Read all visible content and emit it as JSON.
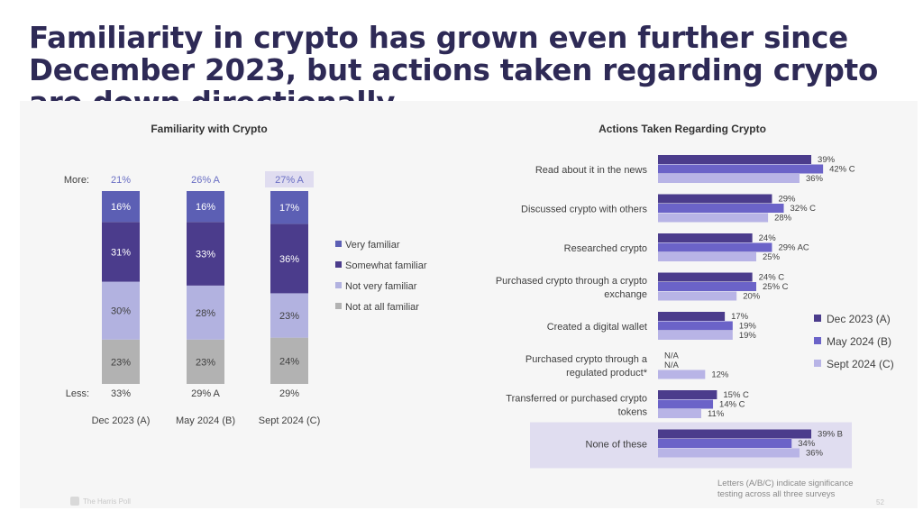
{
  "slide": {
    "title": "Familiarity in crypto has grown even further since December 2023, but actions taken regarding crypto are down directionally",
    "logo_text": "The Harris Poll",
    "footnote": "Letters (A/B/C) indicate significance testing across all three surveys",
    "page_number": "52"
  },
  "colors": {
    "very_familiar": "#5c5fb4",
    "somewhat_familiar": "#4b3c8c",
    "not_very_familiar": "#b2b2e0",
    "not_at_all_familiar": "#b2b2b2",
    "dec2023": "#4b3c8c",
    "may2024": "#6b63c8",
    "sept2024": "#b8b4e6",
    "more_label": "#6a6fc4",
    "highlight_box": "#e0ddf0",
    "text": "#404040"
  },
  "chart_data": [
    {
      "type": "bar",
      "subtype": "stacked",
      "title": "Familiarity with Crypto",
      "categories": [
        "Dec 2023 (A)",
        "May 2024 (B)",
        "Sept 2024  (C)"
      ],
      "series": [
        {
          "name": "Not at all familiar",
          "values": [
            23,
            23,
            24
          ],
          "labels": [
            "23%",
            "23%",
            "24%"
          ]
        },
        {
          "name": "Not very familiar",
          "values": [
            30,
            28,
            23
          ],
          "labels": [
            "30%",
            "28%",
            "23%"
          ]
        },
        {
          "name": "Somewhat familiar",
          "values": [
            31,
            33,
            36
          ],
          "labels": [
            "31%",
            "33%",
            "36%"
          ]
        },
        {
          "name": "Very familiar",
          "values": [
            16,
            16,
            17
          ],
          "labels": [
            "16%",
            "16%",
            "17%"
          ]
        }
      ],
      "legend_order": [
        "Very familiar",
        "Somewhat familiar",
        "Not very familiar",
        "Not at all familiar"
      ],
      "more_label": "More:",
      "more_values": [
        "21%",
        "26% A",
        "27% A"
      ],
      "more_highlight_index": 2,
      "less_label": "Less:",
      "less_values": [
        "33%",
        "29% A",
        "29%"
      ],
      "ylim": [
        0,
        100
      ],
      "legend": "right"
    },
    {
      "type": "bar",
      "subtype": "grouped-horizontal",
      "title": "Actions Taken Regarding Crypto",
      "categories": [
        "Read about it in the news",
        "Discussed crypto with others",
        "Researched crypto",
        "Purchased crypto through a crypto exchange",
        "Created a digital wallet",
        "Purchased crypto through a regulated product*",
        "Transferred or purchased crypto tokens",
        "None of these"
      ],
      "category_lines": [
        [
          "Read about it in the news"
        ],
        [
          "Discussed crypto with others"
        ],
        [
          "Researched crypto"
        ],
        [
          "Purchased crypto through a crypto",
          "exchange"
        ],
        [
          "Created a digital wallet"
        ],
        [
          "Purchased crypto through a",
          "regulated product*"
        ],
        [
          "Transferred or purchased crypto",
          "tokens"
        ],
        [
          "None of these"
        ]
      ],
      "series": [
        {
          "name": "Dec 2023 (A)",
          "values": [
            39,
            29,
            24,
            24,
            17,
            null,
            15,
            39
          ],
          "labels": [
            "39%",
            "29%",
            "24%",
            "24% C",
            "17%",
            "N/A",
            "15% C",
            "39% B"
          ]
        },
        {
          "name": "May 2024 (B)",
          "values": [
            42,
            32,
            29,
            25,
            19,
            null,
            14,
            34
          ],
          "labels": [
            "42% C",
            "32% C",
            "29% AC",
            "25% C",
            "19%",
            "N/A",
            "14% C",
            "34%"
          ]
        },
        {
          "name": "Sept 2024 (C)",
          "values": [
            36,
            28,
            25,
            20,
            19,
            12,
            11,
            36
          ],
          "labels": [
            "36%",
            "28%",
            "25%",
            "20%",
            "19%",
            "12%",
            "11%",
            "36%"
          ]
        }
      ],
      "highlight_category_index": 7,
      "xlim": [
        0,
        100
      ],
      "legend": "right"
    }
  ]
}
